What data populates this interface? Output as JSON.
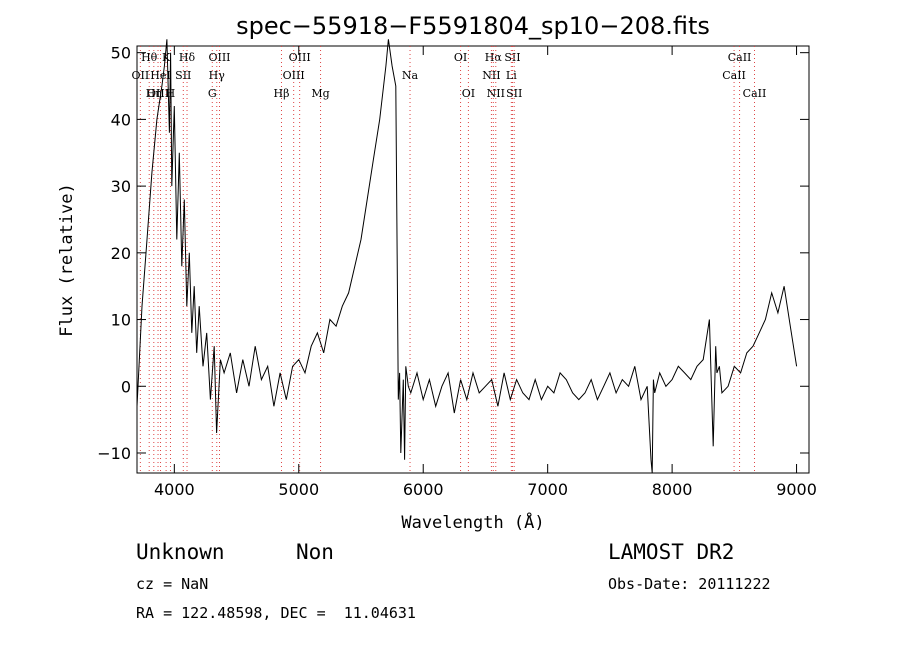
{
  "chart_data": {
    "type": "line",
    "title": "spec−55918−F5591804_sp10−208.fits",
    "xlabel": "Wavelength (Å)",
    "ylabel": "Flux (relative)",
    "xlim": [
      3700,
      9100
    ],
    "ylim": [
      -13,
      51
    ],
    "xticks": [
      4000,
      5000,
      6000,
      7000,
      8000,
      9000
    ],
    "yticks": [
      -10,
      0,
      10,
      20,
      30,
      40,
      50
    ],
    "series": [
      {
        "x": [
          3700,
          3740,
          3780,
          3820,
          3860,
          3900,
          3920,
          3940,
          3960,
          3970,
          3980,
          4000,
          4020,
          4040,
          4060,
          4080,
          4100,
          4120,
          4140,
          4160,
          4180,
          4200,
          4230,
          4260,
          4290,
          4320,
          4340,
          4370,
          4400,
          4450,
          4500,
          4550,
          4600,
          4650,
          4700,
          4750,
          4800,
          4850,
          4900,
          4950,
          5000,
          5050,
          5100,
          5150,
          5200,
          5250,
          5300,
          5350,
          5400,
          5450,
          5500,
          5550,
          5600,
          5650,
          5700,
          5720,
          5750,
          5780,
          5800,
          5810,
          5820,
          5840,
          5850,
          5860,
          5880,
          5900,
          5950,
          6000,
          6050,
          6100,
          6150,
          6200,
          6250,
          6300,
          6350,
          6400,
          6450,
          6500,
          6550,
          6600,
          6650,
          6700,
          6750,
          6800,
          6850,
          6900,
          6950,
          7000,
          7050,
          7100,
          7150,
          7200,
          7250,
          7300,
          7350,
          7400,
          7450,
          7500,
          7550,
          7600,
          7650,
          7700,
          7750,
          7800,
          7830,
          7840,
          7850,
          7860,
          7900,
          7950,
          8000,
          8050,
          8100,
          8150,
          8200,
          8250,
          8300,
          8330,
          8350,
          8360,
          8380,
          8400,
          8450,
          8500,
          8550,
          8600,
          8650,
          8700,
          8750,
          8800,
          8850,
          8900,
          8950,
          9000
        ],
        "y": [
          -3,
          12,
          22,
          32,
          40,
          45,
          48,
          52,
          38,
          50,
          30,
          42,
          22,
          35,
          18,
          28,
          12,
          20,
          8,
          15,
          5,
          12,
          3,
          8,
          -2,
          6,
          -7,
          4,
          2,
          5,
          -1,
          4,
          0,
          6,
          1,
          3,
          -3,
          2,
          -2,
          3,
          4,
          2,
          6,
          8,
          5,
          10,
          9,
          12,
          14,
          18,
          22,
          28,
          34,
          40,
          48,
          52,
          48,
          45,
          -2,
          2,
          -10,
          1,
          -11,
          3,
          0,
          -1,
          2,
          -2,
          1,
          -3,
          0,
          2,
          -4,
          1,
          -2,
          2,
          -1,
          0,
          1,
          -3,
          2,
          -2,
          1,
          -1,
          -2,
          1,
          -2,
          0,
          -1,
          2,
          1,
          -1,
          -2,
          -1,
          1,
          -2,
          0,
          2,
          -1,
          1,
          0,
          3,
          -2,
          0,
          -11,
          -13,
          1,
          -1,
          2,
          0,
          1,
          3,
          2,
          1,
          3,
          4,
          10,
          -9,
          6,
          2,
          3,
          -1,
          0,
          3,
          2,
          5,
          6,
          8,
          10,
          14,
          11,
          15,
          9,
          3
        ],
        "color": "#000000"
      }
    ],
    "line_markers": [
      {
        "label": "OΙΙ",
        "x": 3727,
        "row": 2
      },
      {
        "label": "OΙΙΙ",
        "x": 3869,
        "row": 3
      },
      {
        "label": "Hθ",
        "x": 3798,
        "row": 1
      },
      {
        "label": "Hη",
        "x": 3835,
        "row": 3
      },
      {
        "label": "HeI",
        "x": 3889,
        "row": 2
      },
      {
        "label": "K",
        "x": 3934,
        "row": 1
      },
      {
        "label": "H",
        "x": 3969,
        "row": 3
      },
      {
        "label": "SΙΙ",
        "x": 4072,
        "row": 2
      },
      {
        "label": "Hδ",
        "x": 4102,
        "row": 1
      },
      {
        "label": "OΙΙΙ",
        "x": 4363,
        "row": 1
      },
      {
        "label": "Hγ",
        "x": 4341,
        "row": 2
      },
      {
        "label": "G",
        "x": 4305,
        "row": 3
      },
      {
        "label": "Hβ",
        "x": 4861,
        "row": 3
      },
      {
        "label": "OΙΙΙ",
        "x": 5007,
        "row": 1
      },
      {
        "label": "OΙΙΙ",
        "x": 4959,
        "row": 2
      },
      {
        "label": "Mg",
        "x": 5175,
        "row": 3
      },
      {
        "label": "Na",
        "x": 5894,
        "row": 2
      },
      {
        "label": "OΙ",
        "x": 6300,
        "row": 1
      },
      {
        "label": "OΙ",
        "x": 6363,
        "row": 3
      },
      {
        "label": "Hα",
        "x": 6563,
        "row": 1
      },
      {
        "label": "NΙΙ",
        "x": 6548,
        "row": 2
      },
      {
        "label": "NΙΙ",
        "x": 6583,
        "row": 3
      },
      {
        "label": "SΙΙ",
        "x": 6717,
        "row": 1
      },
      {
        "label": "Li",
        "x": 6708,
        "row": 2
      },
      {
        "label": "SΙΙ",
        "x": 6731,
        "row": 3
      },
      {
        "label": "CaII",
        "x": 8542,
        "row": 1
      },
      {
        "label": "CaII",
        "x": 8498,
        "row": 2
      },
      {
        "label": "CaII",
        "x": 8662,
        "row": 3
      }
    ],
    "grid": false
  },
  "info": {
    "class": "Unknown",
    "subclass": "Non",
    "survey": "LAMOST DR2",
    "cz": "cz = NaN",
    "obsdate": "Obs-Date: 20111222",
    "radec": "RA = 122.48598, DEC =  11.04631"
  }
}
